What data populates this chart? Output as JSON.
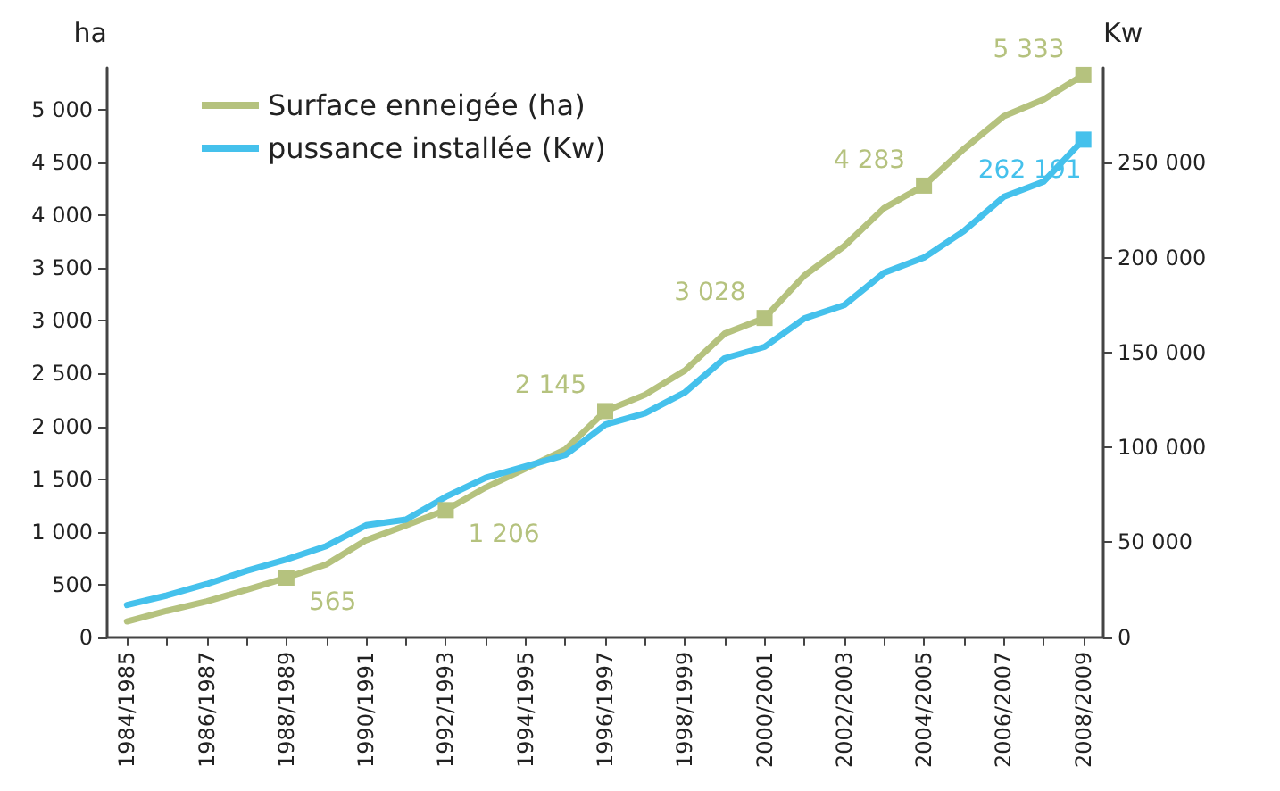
{
  "chart_data": {
    "type": "line",
    "categories": [
      "1984/1985",
      null,
      "1986/1987",
      null,
      "1988/1989",
      null,
      "1990/1991",
      null,
      "1992/1993",
      null,
      "1994/1995",
      null,
      "1996/1997",
      null,
      "1998/1999",
      null,
      "2000/2001",
      null,
      "2002/2003",
      null,
      "2004/2005",
      null,
      "2006/2007",
      null,
      "2008/2009"
    ],
    "ylabel": "ha",
    "y2label": "Kw",
    "ylim": [
      0,
      5400
    ],
    "yticks": [
      0,
      500,
      {
        "value": 1000,
        "label": "1 000"
      },
      {
        "value": 1500,
        "label": "1 500"
      },
      {
        "value": 2000,
        "label": "2 000"
      },
      {
        "value": 2500,
        "label": "2 500"
      },
      {
        "value": 3000,
        "label": "3 000"
      },
      {
        "value": 3500,
        "label": "3 500"
      },
      {
        "value": 4000,
        "label": "4 000"
      },
      {
        "value": 4500,
        "label": "4 500"
      },
      {
        "value": 5000,
        "label": "5 000"
      }
    ],
    "y2lim": [
      0,
      300000
    ],
    "y2ticks": [
      0,
      {
        "value": 50000,
        "label": "50 000"
      },
      {
        "value": 100000,
        "label": "100 000"
      },
      {
        "value": 150000,
        "label": "150 000"
      },
      {
        "value": 200000,
        "label": "200 000"
      },
      {
        "value": 250000,
        "label": "250 000"
      }
    ],
    "series": [
      {
        "name": "Surface enneigée (ha)",
        "color": "#b5c27e",
        "values": [
          150,
          250,
          340,
          450,
          565,
          690,
          920,
          1060,
          1206,
          1420,
          1600,
          1780,
          2145,
          2300,
          2530,
          2880,
          3028,
          3430,
          3710,
          4070,
          4283,
          4630,
          4940,
          5100,
          5333
        ],
        "value_labels": [
          null,
          null,
          null,
          null,
          "565",
          null,
          null,
          null,
          "1 206",
          null,
          null,
          null,
          "2 145",
          null,
          null,
          null,
          "3 028",
          null,
          null,
          null,
          "4 283",
          null,
          null,
          null,
          "5 333"
        ]
      },
      {
        "name": "pussance installée (Kw)",
        "color": "#45c1ec",
        "axis": "y2",
        "values": [
          17000,
          22000,
          28000,
          35000,
          41000,
          48000,
          59000,
          62000,
          74000,
          84000,
          90000,
          96000,
          112000,
          118000,
          129000,
          147000,
          153000,
          168000,
          175000,
          192000,
          200000,
          214000,
          232000,
          240000,
          262191
        ],
        "value_labels": [
          null,
          null,
          null,
          null,
          null,
          null,
          null,
          null,
          null,
          null,
          null,
          null,
          null,
          null,
          null,
          null,
          null,
          null,
          null,
          null,
          null,
          null,
          null,
          null,
          "262 191"
        ]
      }
    ],
    "legend": "top left",
    "grid": false,
    "line_style": "solid"
  }
}
